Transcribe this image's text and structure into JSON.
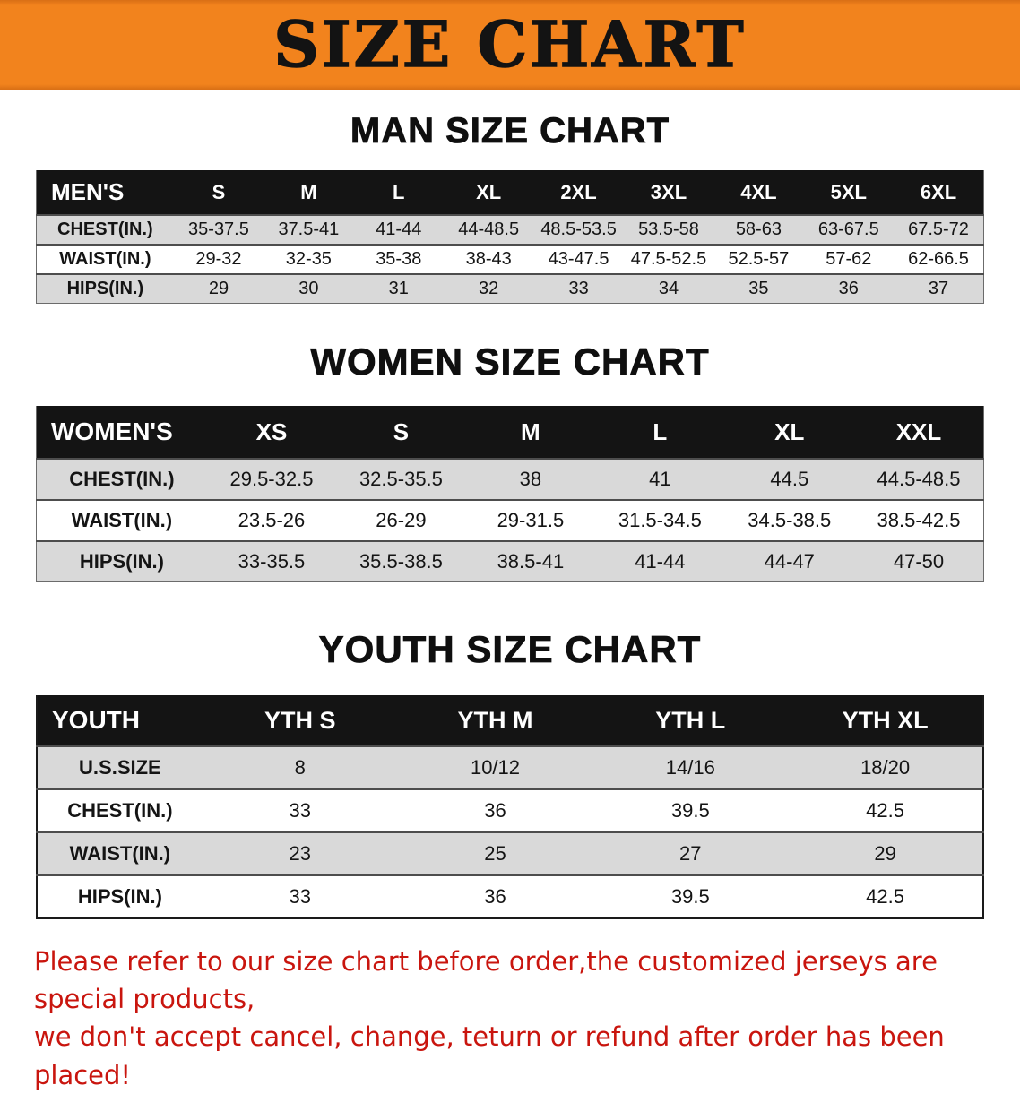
{
  "theme": {
    "orange": "#f2831d",
    "header-bg": "#141414",
    "shade": "#d9d9d9",
    "red": "#c9150e",
    "ink": "#111111"
  },
  "banner": {
    "title": "SIZE CHART"
  },
  "men": {
    "heading": "MAN SIZE CHART",
    "table": {
      "header": [
        "MEN'S",
        "S",
        "M",
        "L",
        "XL",
        "2XL",
        "3XL",
        "4XL",
        "5XL",
        "6XL"
      ],
      "rows": [
        {
          "label": "CHEST(IN.)",
          "shaded": true,
          "values": [
            "35-37.5",
            "37.5-41",
            "41-44",
            "44-48.5",
            "48.5-53.5",
            "53.5-58",
            "58-63",
            "63-67.5",
            "67.5-72"
          ]
        },
        {
          "label": "WAIST(IN.)",
          "shaded": false,
          "values": [
            "29-32",
            "32-35",
            "35-38",
            "38-43",
            "43-47.5",
            "47.5-52.5",
            "52.5-57",
            "57-62",
            "62-66.5"
          ]
        },
        {
          "label": "HIPS(IN.)",
          "shaded": true,
          "values": [
            "29",
            "30",
            "31",
            "32",
            "33",
            "34",
            "35",
            "36",
            "37"
          ]
        }
      ]
    }
  },
  "women": {
    "heading": "WOMEN SIZE CHART",
    "table": {
      "header": [
        "WOMEN'S",
        "XS",
        "S",
        "M",
        "L",
        "XL",
        "XXL"
      ],
      "rows": [
        {
          "label": "CHEST(IN.)",
          "shaded": true,
          "values": [
            "29.5-32.5",
            "32.5-35.5",
            "38",
            "41",
            "44.5",
            "44.5-48.5"
          ]
        },
        {
          "label": "WAIST(IN.)",
          "shaded": false,
          "values": [
            "23.5-26",
            "26-29",
            "29-31.5",
            "31.5-34.5",
            "34.5-38.5",
            "38.5-42.5"
          ]
        },
        {
          "label": "HIPS(IN.)",
          "shaded": true,
          "values": [
            "33-35.5",
            "35.5-38.5",
            "38.5-41",
            "41-44",
            "44-47",
            "47-50"
          ]
        }
      ]
    }
  },
  "youth": {
    "heading": "YOUTH SIZE CHART",
    "table": {
      "header": [
        "YOUTH",
        "YTH S",
        "YTH M",
        "YTH L",
        "YTH XL"
      ],
      "rows": [
        {
          "label": "U.S.SIZE",
          "shaded": true,
          "values": [
            "8",
            "10/12",
            "14/16",
            "18/20"
          ]
        },
        {
          "label": "CHEST(IN.)",
          "shaded": false,
          "values": [
            "33",
            "36",
            "39.5",
            "42.5"
          ]
        },
        {
          "label": "WAIST(IN.)",
          "shaded": true,
          "values": [
            "23",
            "25",
            "27",
            "29"
          ]
        },
        {
          "label": "HIPS(IN.)",
          "shaded": false,
          "values": [
            "33",
            "36",
            "39.5",
            "42.5"
          ]
        }
      ]
    }
  },
  "disclaimer": {
    "lines": [
      "Please refer to our size chart before order,the customized jerseys are special products,",
      "we don't accept cancel, change, teturn or refund after order has been placed!"
    ]
  }
}
